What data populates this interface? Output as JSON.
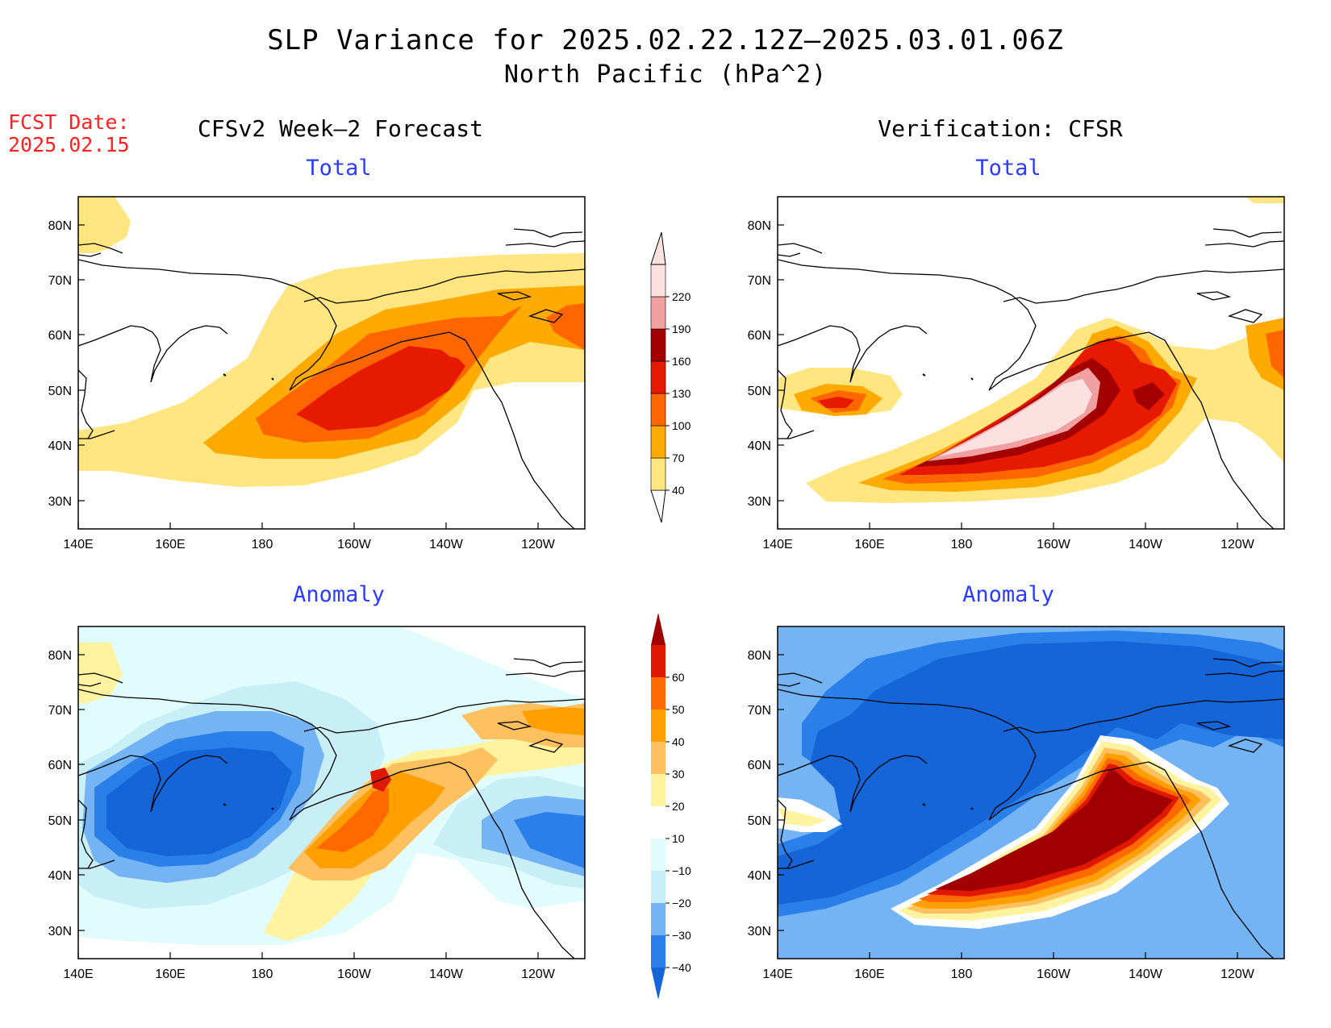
{
  "title": "SLP Variance for 2025.02.22.12Z–2025.03.01.06Z",
  "subtitle": "North Pacific (hPa^2)",
  "fcst_date": {
    "label": "FCST Date:",
    "value": "2025.02.15"
  },
  "columns": {
    "left": "CFSv2 Week–2 Forecast",
    "right": "Verification: CFSR"
  },
  "panels": [
    {
      "id": "fcst-total",
      "title": "Total"
    },
    {
      "id": "verif-total",
      "title": "Total"
    },
    {
      "id": "fcst-anomaly",
      "title": "Anomaly"
    },
    {
      "id": "verif-anomaly",
      "title": "Anomaly"
    }
  ],
  "axes": {
    "lon_labels": [
      "140E",
      "160E",
      "180",
      "160W",
      "140W",
      "120W"
    ],
    "lat_labels": [
      "80N",
      "70N",
      "60N",
      "50N",
      "40N",
      "30N"
    ],
    "lon_range": "140E–110W",
    "lat_range": "25N–85N"
  },
  "colorbars": {
    "total": {
      "ticks": [
        "40",
        "70",
        "100",
        "130",
        "160",
        "190",
        "220"
      ],
      "colors": [
        "#ffe680",
        "#ffaa00",
        "#ff6600",
        "#e61a00",
        "#a50000",
        "#f0a0a0",
        "#fde0e0"
      ]
    },
    "anomaly": {
      "ticks": [
        "−40",
        "−30",
        "−20",
        "−10",
        "10",
        "20",
        "30",
        "40",
        "50",
        "60"
      ],
      "colors": [
        "#1565d8",
        "#2a7fe8",
        "#74b4f4",
        "#c8eef6",
        "#e0fcfc",
        "#ffffff",
        "#fff3a0",
        "#ffc060",
        "#ffa000",
        "#ff6a00",
        "#e01800",
        "#a00000"
      ]
    }
  }
}
